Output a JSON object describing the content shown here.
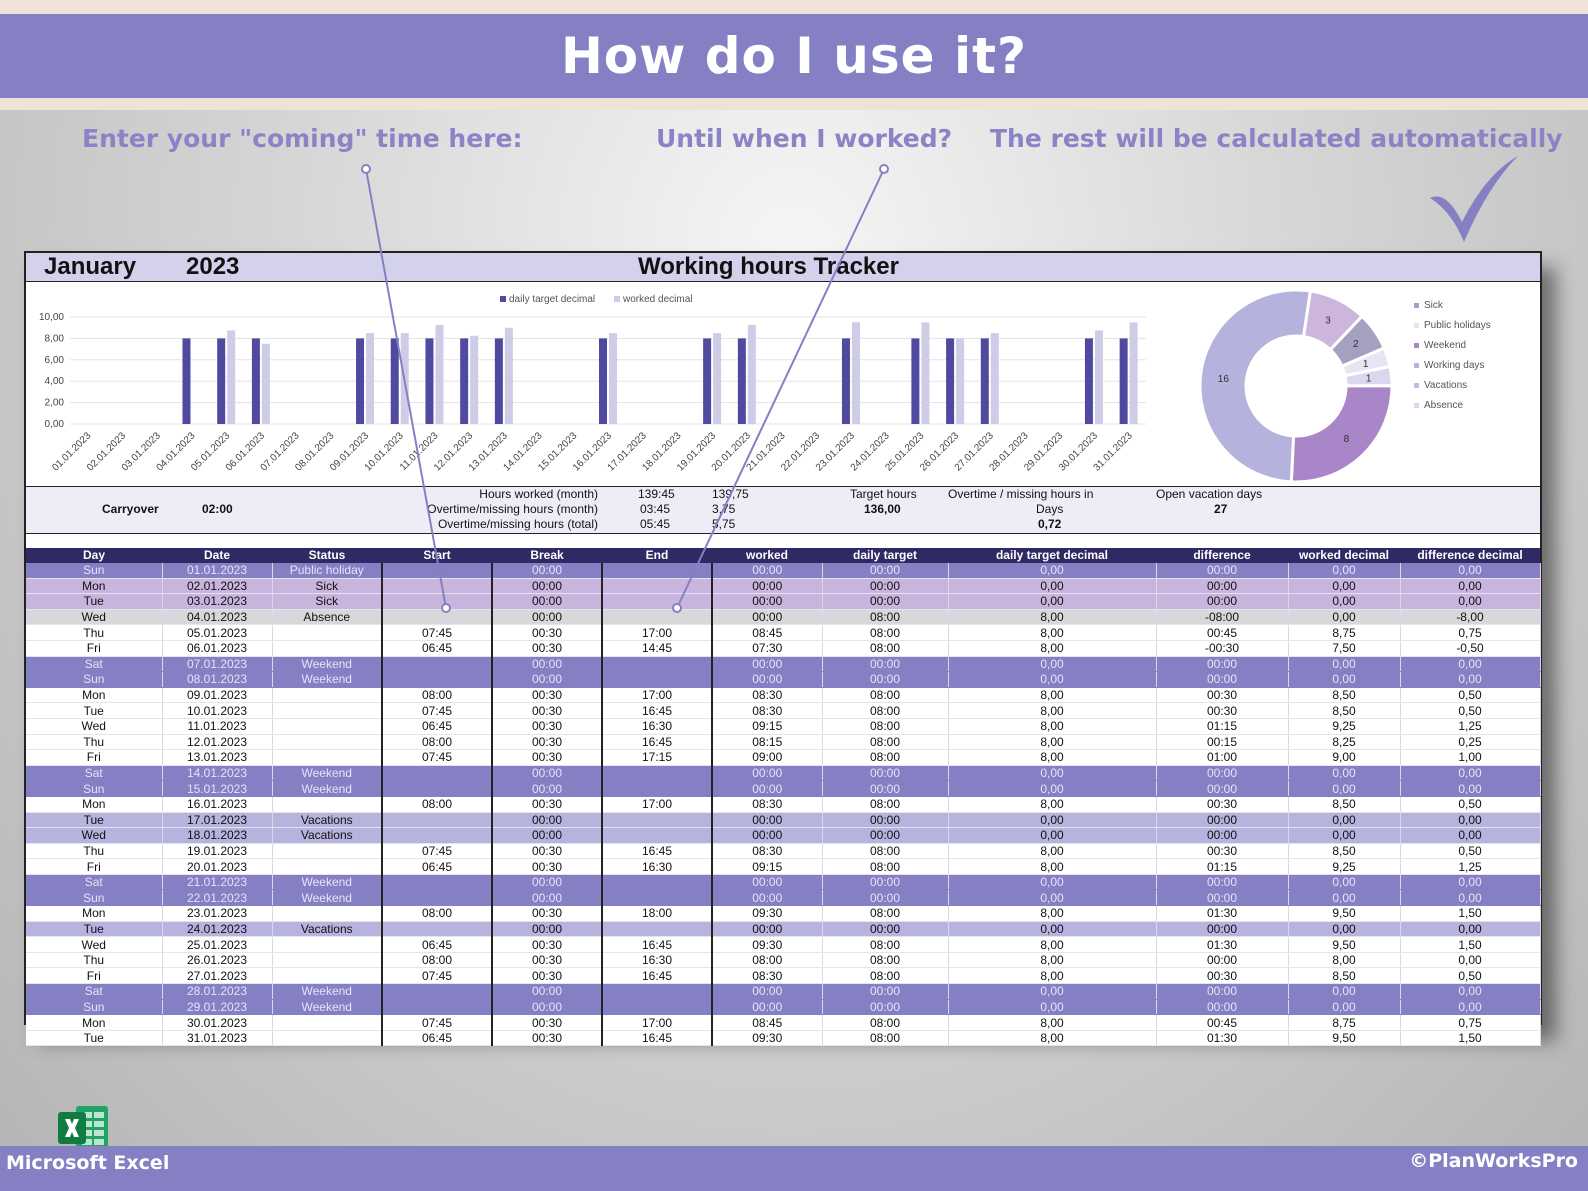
{
  "banner": {
    "title": "How do I use it?"
  },
  "callouts": {
    "coming": "Enter your \"coming\" time here:",
    "until": "Until when I worked?",
    "rest": "The rest will be calculated automatically"
  },
  "sheet": {
    "month": "January",
    "year": "2023",
    "title": "Working hours Tracker"
  },
  "summary": {
    "carryover_label": "Carryover",
    "carryover_value": "02:00",
    "hours_worked_label": "Hours worked (month)",
    "hours_worked_time": "139:45",
    "hours_worked_decimal": "139,75",
    "overtime_month_label": "Overtime/missing hours (month)",
    "overtime_month_time": "03:45",
    "overtime_month_decimal": "3,75",
    "overtime_total_label": "Overtime/missing hours (total)",
    "overtime_total_time": "05:45",
    "overtime_total_decimal": "5,75",
    "target_hours_label": "Target hours",
    "target_hours_value": "136,00",
    "overtime_days_label": "Overtime / missing hours in",
    "overtime_days_label2": "Days",
    "overtime_days_value": "0,72",
    "open_vacation_label": "Open vacation days",
    "open_vacation_value": "27"
  },
  "table": {
    "headers": [
      "Day",
      "Date",
      "Status",
      "Start",
      "Break",
      "End",
      "worked",
      "daily target",
      "daily target decimal",
      "difference",
      "worked decimal",
      "difference decimal"
    ],
    "rows": [
      {
        "type": "holiday",
        "cells": [
          "Sun",
          "01.01.2023",
          "Public holiday",
          "",
          "00:00",
          "",
          "00:00",
          "00:00",
          "0,00",
          "00:00",
          "0,00",
          "0,00"
        ]
      },
      {
        "type": "sick",
        "cells": [
          "Mon",
          "02.01.2023",
          "Sick",
          "",
          "00:00",
          "",
          "00:00",
          "00:00",
          "0,00",
          "00:00",
          "0,00",
          "0,00"
        ]
      },
      {
        "type": "sick",
        "cells": [
          "Tue",
          "03.01.2023",
          "Sick",
          "",
          "00:00",
          "",
          "00:00",
          "00:00",
          "0,00",
          "00:00",
          "0,00",
          "0,00"
        ]
      },
      {
        "type": "absence",
        "cells": [
          "Wed",
          "04.01.2023",
          "Absence",
          "",
          "00:00",
          "",
          "00:00",
          "08:00",
          "8,00",
          "-08:00",
          "0,00",
          "-8,00"
        ]
      },
      {
        "type": "work",
        "cells": [
          "Thu",
          "05.01.2023",
          "",
          "07:45",
          "00:30",
          "17:00",
          "08:45",
          "08:00",
          "8,00",
          "00:45",
          "8,75",
          "0,75"
        ]
      },
      {
        "type": "work",
        "cells": [
          "Fri",
          "06.01.2023",
          "",
          "06:45",
          "00:30",
          "14:45",
          "07:30",
          "08:00",
          "8,00",
          "-00:30",
          "7,50",
          "-0,50"
        ]
      },
      {
        "type": "weekend",
        "cells": [
          "Sat",
          "07.01.2023",
          "Weekend",
          "",
          "00:00",
          "",
          "00:00",
          "00:00",
          "0,00",
          "00:00",
          "0,00",
          "0,00"
        ]
      },
      {
        "type": "weekend",
        "cells": [
          "Sun",
          "08.01.2023",
          "Weekend",
          "",
          "00:00",
          "",
          "00:00",
          "00:00",
          "0,00",
          "00:00",
          "0,00",
          "0,00"
        ]
      },
      {
        "type": "work",
        "cells": [
          "Mon",
          "09.01.2023",
          "",
          "08:00",
          "00:30",
          "17:00",
          "08:30",
          "08:00",
          "8,00",
          "00:30",
          "8,50",
          "0,50"
        ]
      },
      {
        "type": "work",
        "cells": [
          "Tue",
          "10.01.2023",
          "",
          "07:45",
          "00:30",
          "16:45",
          "08:30",
          "08:00",
          "8,00",
          "00:30",
          "8,50",
          "0,50"
        ]
      },
      {
        "type": "work",
        "cells": [
          "Wed",
          "11.01.2023",
          "",
          "06:45",
          "00:30",
          "16:30",
          "09:15",
          "08:00",
          "8,00",
          "01:15",
          "9,25",
          "1,25"
        ]
      },
      {
        "type": "work",
        "cells": [
          "Thu",
          "12.01.2023",
          "",
          "08:00",
          "00:30",
          "16:45",
          "08:15",
          "08:00",
          "8,00",
          "00:15",
          "8,25",
          "0,25"
        ]
      },
      {
        "type": "work",
        "cells": [
          "Fri",
          "13.01.2023",
          "",
          "07:45",
          "00:30",
          "17:15",
          "09:00",
          "08:00",
          "8,00",
          "01:00",
          "9,00",
          "1,00"
        ]
      },
      {
        "type": "weekend",
        "cells": [
          "Sat",
          "14.01.2023",
          "Weekend",
          "",
          "00:00",
          "",
          "00:00",
          "00:00",
          "0,00",
          "00:00",
          "0,00",
          "0,00"
        ]
      },
      {
        "type": "weekend",
        "cells": [
          "Sun",
          "15.01.2023",
          "Weekend",
          "",
          "00:00",
          "",
          "00:00",
          "00:00",
          "0,00",
          "00:00",
          "0,00",
          "0,00"
        ]
      },
      {
        "type": "work",
        "cells": [
          "Mon",
          "16.01.2023",
          "",
          "08:00",
          "00:30",
          "17:00",
          "08:30",
          "08:00",
          "8,00",
          "00:30",
          "8,50",
          "0,50"
        ]
      },
      {
        "type": "vacation",
        "cells": [
          "Tue",
          "17.01.2023",
          "Vacations",
          "",
          "00:00",
          "",
          "00:00",
          "00:00",
          "0,00",
          "00:00",
          "0,00",
          "0,00"
        ]
      },
      {
        "type": "vacation",
        "cells": [
          "Wed",
          "18.01.2023",
          "Vacations",
          "",
          "00:00",
          "",
          "00:00",
          "00:00",
          "0,00",
          "00:00",
          "0,00",
          "0,00"
        ]
      },
      {
        "type": "work",
        "cells": [
          "Thu",
          "19.01.2023",
          "",
          "07:45",
          "00:30",
          "16:45",
          "08:30",
          "08:00",
          "8,00",
          "00:30",
          "8,50",
          "0,50"
        ]
      },
      {
        "type": "work",
        "cells": [
          "Fri",
          "20.01.2023",
          "",
          "06:45",
          "00:30",
          "16:30",
          "09:15",
          "08:00",
          "8,00",
          "01:15",
          "9,25",
          "1,25"
        ]
      },
      {
        "type": "weekend",
        "cells": [
          "Sat",
          "21.01.2023",
          "Weekend",
          "",
          "00:00",
          "",
          "00:00",
          "00:00",
          "0,00",
          "00:00",
          "0,00",
          "0,00"
        ]
      },
      {
        "type": "weekend",
        "cells": [
          "Sun",
          "22.01.2023",
          "Weekend",
          "",
          "00:00",
          "",
          "00:00",
          "00:00",
          "0,00",
          "00:00",
          "0,00",
          "0,00"
        ]
      },
      {
        "type": "work",
        "cells": [
          "Mon",
          "23.01.2023",
          "",
          "08:00",
          "00:30",
          "18:00",
          "09:30",
          "08:00",
          "8,00",
          "01:30",
          "9,50",
          "1,50"
        ]
      },
      {
        "type": "vacation",
        "cells": [
          "Tue",
          "24.01.2023",
          "Vacations",
          "",
          "00:00",
          "",
          "00:00",
          "00:00",
          "0,00",
          "00:00",
          "0,00",
          "0,00"
        ]
      },
      {
        "type": "work",
        "cells": [
          "Wed",
          "25.01.2023",
          "",
          "06:45",
          "00:30",
          "16:45",
          "09:30",
          "08:00",
          "8,00",
          "01:30",
          "9,50",
          "1,50"
        ]
      },
      {
        "type": "work",
        "cells": [
          "Thu",
          "26.01.2023",
          "",
          "08:00",
          "00:30",
          "16:30",
          "08:00",
          "08:00",
          "8,00",
          "00:00",
          "8,00",
          "0,00"
        ]
      },
      {
        "type": "work",
        "cells": [
          "Fri",
          "27.01.2023",
          "",
          "07:45",
          "00:30",
          "16:45",
          "08:30",
          "08:00",
          "8,00",
          "00:30",
          "8,50",
          "0,50"
        ]
      },
      {
        "type": "weekend",
        "cells": [
          "Sat",
          "28.01.2023",
          "Weekend",
          "",
          "00:00",
          "",
          "00:00",
          "00:00",
          "0,00",
          "00:00",
          "0,00",
          "0,00"
        ]
      },
      {
        "type": "weekend",
        "cells": [
          "Sun",
          "29.01.2023",
          "Weekend",
          "",
          "00:00",
          "",
          "00:00",
          "00:00",
          "0,00",
          "00:00",
          "0,00",
          "0,00"
        ]
      },
      {
        "type": "work",
        "cells": [
          "Mon",
          "30.01.2023",
          "",
          "07:45",
          "00:30",
          "17:00",
          "08:45",
          "08:00",
          "8,00",
          "00:45",
          "8,75",
          "0,75"
        ]
      },
      {
        "type": "work",
        "cells": [
          "Tue",
          "31.01.2023",
          "",
          "06:45",
          "00:30",
          "16:45",
          "09:30",
          "08:00",
          "8,00",
          "01:30",
          "9,50",
          "1,50"
        ]
      }
    ]
  },
  "chart_data": [
    {
      "type": "bar",
      "categories": [
        "01.01.2023",
        "02.01.2023",
        "03.01.2023",
        "04.01.2023",
        "05.01.2023",
        "06.01.2023",
        "07.01.2023",
        "08.01.2023",
        "09.01.2023",
        "10.01.2023",
        "11.01.2023",
        "12.01.2023",
        "13.01.2023",
        "14.01.2023",
        "15.01.2023",
        "16.01.2023",
        "17.01.2023",
        "18.01.2023",
        "19.01.2023",
        "20.01.2023",
        "21.01.2023",
        "22.01.2023",
        "23.01.2023",
        "24.01.2023",
        "25.01.2023",
        "26.01.2023",
        "27.01.2023",
        "28.01.2023",
        "29.01.2023",
        "30.01.2023",
        "31.01.2023"
      ],
      "series": [
        {
          "name": "daily target decimal",
          "color": "#4f4aa0",
          "values": [
            0,
            0,
            0,
            8,
            8,
            8,
            0,
            0,
            8,
            8,
            8,
            8,
            8,
            0,
            0,
            8,
            0,
            0,
            8,
            8,
            0,
            0,
            8,
            0,
            8,
            8,
            8,
            0,
            0,
            8,
            8
          ]
        },
        {
          "name": "worked decimal",
          "color": "#cfcce8",
          "values": [
            0,
            0,
            0,
            0,
            8.75,
            7.5,
            0,
            0,
            8.5,
            8.5,
            9.25,
            8.25,
            9,
            0,
            0,
            8.5,
            0,
            0,
            8.5,
            9.25,
            0,
            0,
            9.5,
            0,
            9.5,
            8,
            8.5,
            0,
            0,
            8.75,
            9.5
          ]
        }
      ],
      "yticks": [
        "0,00",
        "2,00",
        "4,00",
        "6,00",
        "8,00",
        "10,00"
      ],
      "ylim": [
        0,
        10
      ],
      "legend": "top",
      "grid": true
    },
    {
      "type": "pie",
      "variant": "donut",
      "slices": [
        {
          "label": "Sick",
          "value": 2,
          "color": "#a3a0c0"
        },
        {
          "label": "Public holidays",
          "value": 1,
          "color": "#e6e5f2"
        },
        {
          "label": "Weekend",
          "value": 8,
          "color": "#a886c8"
        },
        {
          "label": "Working days",
          "value": 16,
          "color": "#b5b2dd"
        },
        {
          "label": "Vacations",
          "value": 3,
          "color": "#cdb6de"
        },
        {
          "label": "Absence",
          "value": 1,
          "color": "#dcd6ef"
        }
      ],
      "legend": "right"
    }
  ],
  "footer": {
    "app_name": "Microsoft Excel",
    "brand": "©PlanWorksPro"
  },
  "colors": {
    "accent": "#8580c3",
    "header_dark": "#2f2a63",
    "sick_row": "#c9b4de",
    "vacation_row": "#b7b3df",
    "absence_row": "#d8d8dc"
  }
}
